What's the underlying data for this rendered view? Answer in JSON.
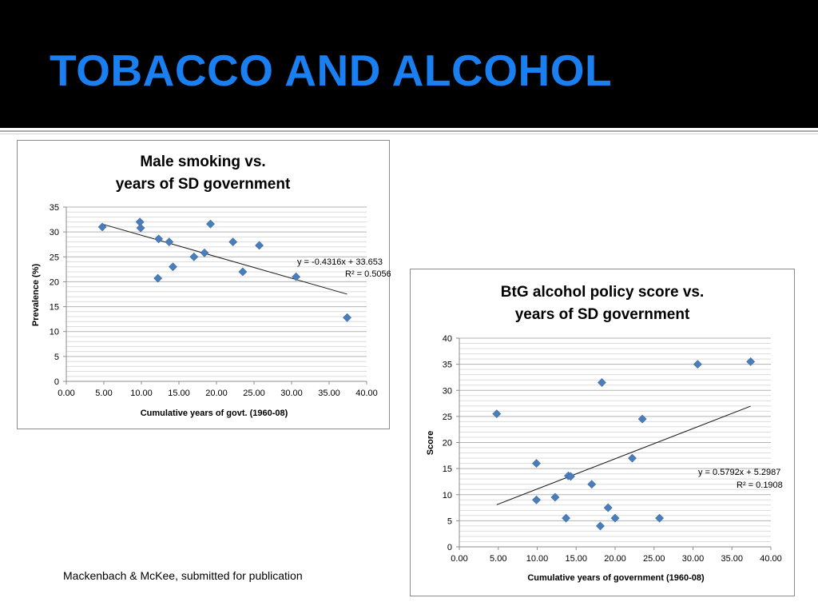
{
  "slide": {
    "title": "TOBACCO AND ALCOHOL",
    "citation": "Mackenbach & McKee, submitted for publication",
    "title_color": "#1a7ff0",
    "title_bar_color": "#000000"
  },
  "chart_data": [
    {
      "type": "scatter",
      "title": [
        "Male smoking vs.",
        "years of SD government"
      ],
      "xlabel": "Cumulative years of govt. (1960-08)",
      "ylabel": "Prevalence (%)",
      "xlim": [
        0,
        40
      ],
      "ylim": [
        0,
        35
      ],
      "xticks": [
        0,
        5,
        10,
        15,
        20,
        25,
        30,
        35,
        40
      ],
      "yticks": [
        0,
        5,
        10,
        15,
        20,
        25,
        30,
        35
      ],
      "x_tick_format": 2,
      "grid": "horizontal",
      "marker": "diamond",
      "marker_color": "#4a7ebb",
      "points": [
        {
          "x": 4.8,
          "y": 31.0
        },
        {
          "x": 9.8,
          "y": 32.0
        },
        {
          "x": 9.9,
          "y": 30.8
        },
        {
          "x": 12.3,
          "y": 28.6
        },
        {
          "x": 12.2,
          "y": 20.7
        },
        {
          "x": 13.7,
          "y": 28.0
        },
        {
          "x": 14.2,
          "y": 23.0
        },
        {
          "x": 17.0,
          "y": 25.0
        },
        {
          "x": 18.4,
          "y": 25.8
        },
        {
          "x": 19.2,
          "y": 31.6
        },
        {
          "x": 22.2,
          "y": 28.0
        },
        {
          "x": 23.5,
          "y": 22.0
        },
        {
          "x": 25.7,
          "y": 27.3
        },
        {
          "x": 30.6,
          "y": 21.0
        },
        {
          "x": 37.4,
          "y": 12.8
        }
      ],
      "trendline": {
        "slope": -0.4316,
        "intercept": 33.653,
        "x_range": [
          4.8,
          37.4
        ]
      },
      "equation": "y = -0.4316x + 33.653",
      "r_squared": "R² = 0.5056"
    },
    {
      "type": "scatter",
      "title": [
        "BtG alcohol policy score vs.",
        "years of SD government"
      ],
      "xlabel": "Cumulative years of government (1960-08)",
      "ylabel": "Score",
      "xlim": [
        0,
        40
      ],
      "ylim": [
        0,
        40
      ],
      "xticks": [
        0,
        5,
        10,
        15,
        20,
        25,
        30,
        35,
        40
      ],
      "yticks": [
        0,
        5,
        10,
        15,
        20,
        25,
        30,
        35,
        40
      ],
      "x_tick_format": 2,
      "grid": "horizontal",
      "marker": "diamond",
      "marker_color": "#4a7ebb",
      "points": [
        {
          "x": 4.8,
          "y": 25.5
        },
        {
          "x": 9.9,
          "y": 16.0
        },
        {
          "x": 9.9,
          "y": 9.0
        },
        {
          "x": 12.3,
          "y": 9.5
        },
        {
          "x": 13.7,
          "y": 5.5
        },
        {
          "x": 14.0,
          "y": 13.6
        },
        {
          "x": 14.3,
          "y": 13.5
        },
        {
          "x": 17.0,
          "y": 12.0
        },
        {
          "x": 18.1,
          "y": 4.0
        },
        {
          "x": 18.3,
          "y": 31.5
        },
        {
          "x": 19.1,
          "y": 7.5
        },
        {
          "x": 20.0,
          "y": 5.5
        },
        {
          "x": 22.2,
          "y": 17.0
        },
        {
          "x": 23.5,
          "y": 24.5
        },
        {
          "x": 25.7,
          "y": 5.5
        },
        {
          "x": 30.6,
          "y": 35.0
        },
        {
          "x": 37.4,
          "y": 35.5
        }
      ],
      "trendline": {
        "slope": 0.5792,
        "intercept": 5.2987,
        "x_range": [
          4.8,
          37.4
        ]
      },
      "equation": "y = 0.5792x + 5.2987",
      "r_squared": "R² = 0.1908"
    }
  ]
}
